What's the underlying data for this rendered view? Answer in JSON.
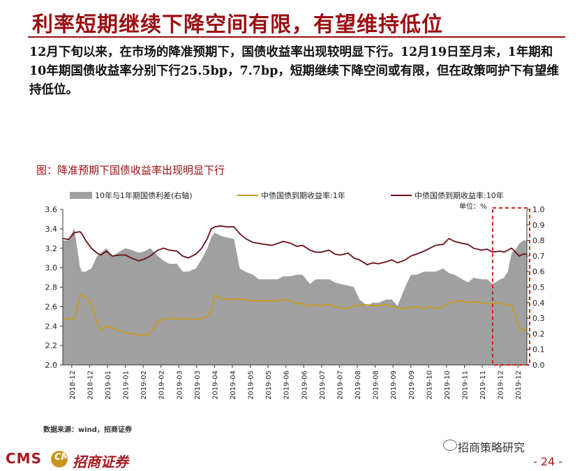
{
  "slide": {
    "title": "利率短期继续下降空间有限，有望维持低位",
    "intro": "12月下旬以来，在市场的降准预期下，国债收益率出现较明显下行。12月19日至月末，1年期和10年期国债收益率分别下行25.5bp，7.7bp，短期继续下降空间或有限，但在政策呵护下有望维持低位。"
  },
  "chart_label": "图：降准预期下国债收益率出现明显下行",
  "source": "数据来源：wind，招商证券",
  "footer": {
    "brand": "CMS",
    "mark": "CM",
    "name": "招商证券",
    "wechat": "招商策略研究",
    "page": "- 24 -"
  },
  "colors": {
    "spread": "#a0a0a0",
    "y1": "#c79a1c",
    "y10": "#6b0d12",
    "accent": "#9b0d12",
    "highlight": "#d42020"
  },
  "chart_data": {
    "type": "line",
    "x_tick_labels": [
      "2018-12",
      "2018-12",
      "2019-01",
      "2019-01",
      "2019-02",
      "2019-02",
      "2019-03",
      "2019-03",
      "2019-04",
      "2019-04",
      "2019-05",
      "2019-05",
      "2019-06",
      "2019-06",
      "2019-07",
      "2019-07",
      "2019-08",
      "2019-08",
      "2019-09",
      "2019-09",
      "2019-10",
      "2019-10",
      "2019-11",
      "2019-11",
      "2019-12",
      "2019-12"
    ],
    "legend": [
      "10年与1年期国债利差(右轴)",
      "中债国债到期收益率:1年",
      "中债国债到期收益率:10年"
    ],
    "unit_label": "单位：%",
    "ylim_left": [
      2.0,
      3.6
    ],
    "ylim_right": [
      0.0,
      1.0
    ],
    "yticks_left": [
      "2.0",
      "2.2",
      "2.4",
      "2.6",
      "2.8",
      "3.0",
      "3.2",
      "3.4",
      "3.6"
    ],
    "yticks_right": [
      "0.0",
      "0.1",
      "0.2",
      "0.3",
      "0.4",
      "0.5",
      "0.6",
      "0.7",
      "0.8",
      "0.9",
      "1.0"
    ],
    "x_count": 24.4,
    "series": [
      {
        "name": "中债国债到期收益率:10年",
        "axis": "left",
        "x": [
          0,
          0.3,
          0.6,
          0.9,
          1.0,
          1.2,
          1.5,
          1.8,
          2.0,
          2.3,
          2.6,
          3.0,
          3.3,
          3.6,
          4.0,
          4.3,
          4.6,
          5.0,
          5.3,
          5.6,
          6.0,
          6.3,
          6.6,
          7.0,
          7.3,
          7.6,
          7.8,
          8.0,
          8.3,
          8.6,
          9.0,
          9.3,
          9.6,
          10.0,
          10.3,
          10.6,
          11.0,
          11.3,
          11.6,
          12.0,
          12.3,
          12.6,
          13.0,
          13.3,
          13.6,
          14.0,
          14.3,
          14.6,
          15.0,
          15.3,
          15.6,
          16.0,
          16.3,
          16.6,
          17.0,
          17.3,
          17.6,
          18.0,
          18.3,
          18.6,
          19.0,
          19.3,
          19.6,
          20.0,
          20.3,
          20.6,
          21.0,
          21.3,
          21.6,
          22.0,
          22.3,
          22.6,
          23.0,
          23.2,
          23.4,
          23.6,
          23.8,
          24.0,
          24.2,
          24.4
        ],
        "values": [
          3.3,
          3.29,
          3.36,
          3.37,
          3.35,
          3.28,
          3.2,
          3.15,
          3.13,
          3.17,
          3.12,
          3.13,
          3.13,
          3.1,
          3.07,
          3.09,
          3.12,
          3.18,
          3.2,
          3.18,
          3.17,
          3.12,
          3.1,
          3.14,
          3.2,
          3.3,
          3.4,
          3.42,
          3.43,
          3.42,
          3.42,
          3.35,
          3.3,
          3.26,
          3.25,
          3.24,
          3.23,
          3.25,
          3.27,
          3.25,
          3.22,
          3.23,
          3.18,
          3.16,
          3.16,
          3.18,
          3.14,
          3.13,
          3.15,
          3.1,
          3.08,
          3.03,
          3.05,
          3.04,
          3.06,
          3.08,
          3.05,
          3.08,
          3.12,
          3.14,
          3.17,
          3.2,
          3.23,
          3.24,
          3.3,
          3.27,
          3.25,
          3.24,
          3.2,
          3.18,
          3.19,
          3.16,
          3.17,
          3.16,
          3.18,
          3.2,
          3.16,
          3.12,
          3.14,
          3.14
        ]
      },
      {
        "name": "中债国债到期收益率:1年",
        "axis": "left",
        "x": [
          0,
          0.3,
          0.6,
          0.9,
          1.0,
          1.2,
          1.5,
          1.8,
          2.0,
          2.3,
          2.6,
          3.0,
          3.3,
          3.6,
          4.0,
          4.3,
          4.6,
          5.0,
          5.3,
          5.6,
          6.0,
          6.3,
          6.6,
          7.0,
          7.3,
          7.6,
          7.8,
          8.0,
          8.3,
          8.6,
          9.0,
          9.3,
          9.6,
          10.0,
          10.3,
          10.6,
          11.0,
          11.3,
          11.6,
          12.0,
          12.3,
          12.6,
          13.0,
          13.3,
          13.6,
          14.0,
          14.3,
          14.6,
          15.0,
          15.3,
          15.6,
          16.0,
          16.3,
          16.6,
          17.0,
          17.3,
          17.6,
          18.0,
          18.3,
          18.6,
          19.0,
          19.3,
          19.6,
          20.0,
          20.3,
          20.6,
          21.0,
          21.3,
          21.6,
          22.0,
          22.3,
          22.6,
          23.0,
          23.2,
          23.4,
          23.6,
          23.8,
          24.0,
          24.2,
          24.4
        ],
        "values": [
          2.46,
          2.48,
          2.47,
          2.7,
          2.72,
          2.7,
          2.62,
          2.44,
          2.36,
          2.4,
          2.38,
          2.35,
          2.33,
          2.32,
          2.31,
          2.31,
          2.32,
          2.45,
          2.47,
          2.48,
          2.47,
          2.48,
          2.47,
          2.47,
          2.48,
          2.5,
          2.55,
          2.72,
          2.68,
          2.68,
          2.67,
          2.68,
          2.67,
          2.66,
          2.66,
          2.66,
          2.66,
          2.66,
          2.67,
          2.66,
          2.63,
          2.63,
          2.6,
          2.62,
          2.61,
          2.62,
          2.6,
          2.59,
          2.58,
          2.61,
          2.61,
          2.62,
          2.61,
          2.61,
          2.62,
          2.6,
          2.59,
          2.58,
          2.59,
          2.6,
          2.58,
          2.6,
          2.58,
          2.6,
          2.64,
          2.65,
          2.66,
          2.64,
          2.65,
          2.64,
          2.63,
          2.63,
          2.64,
          2.62,
          2.62,
          2.61,
          2.5,
          2.38,
          2.36,
          2.36
        ]
      },
      {
        "name": "10年与1年期国债利差(右轴)",
        "axis": "right",
        "x": [
          0,
          0.3,
          0.6,
          0.9,
          1.0,
          1.2,
          1.5,
          1.8,
          2.0,
          2.3,
          2.6,
          3.0,
          3.3,
          3.6,
          4.0,
          4.3,
          4.6,
          5.0,
          5.3,
          5.6,
          6.0,
          6.3,
          6.6,
          7.0,
          7.3,
          7.6,
          7.8,
          8.0,
          8.3,
          8.6,
          9.0,
          9.3,
          9.6,
          10.0,
          10.3,
          10.6,
          11.0,
          11.3,
          11.6,
          12.0,
          12.3,
          12.6,
          13.0,
          13.3,
          13.6,
          14.0,
          14.3,
          14.6,
          15.0,
          15.3,
          15.6,
          16.0,
          16.3,
          16.6,
          17.0,
          17.3,
          17.6,
          18.0,
          18.3,
          18.6,
          19.0,
          19.3,
          19.6,
          20.0,
          20.3,
          20.6,
          21.0,
          21.3,
          21.6,
          22.0,
          22.3,
          22.6,
          23.0,
          23.2,
          23.4,
          23.6,
          23.8,
          24.0,
          24.2,
          24.4
        ],
        "values": [
          0.8,
          0.8,
          0.88,
          0.63,
          0.6,
          0.6,
          0.62,
          0.7,
          0.72,
          0.75,
          0.7,
          0.73,
          0.75,
          0.74,
          0.72,
          0.73,
          0.75,
          0.7,
          0.67,
          0.65,
          0.65,
          0.6,
          0.6,
          0.62,
          0.68,
          0.75,
          0.82,
          0.85,
          0.83,
          0.82,
          0.81,
          0.62,
          0.6,
          0.58,
          0.55,
          0.55,
          0.55,
          0.55,
          0.57,
          0.57,
          0.58,
          0.58,
          0.52,
          0.55,
          0.55,
          0.55,
          0.53,
          0.52,
          0.51,
          0.5,
          0.42,
          0.38,
          0.4,
          0.4,
          0.42,
          0.42,
          0.38,
          0.5,
          0.58,
          0.58,
          0.6,
          0.6,
          0.6,
          0.62,
          0.59,
          0.58,
          0.55,
          0.53,
          0.56,
          0.55,
          0.55,
          0.52,
          0.55,
          0.56,
          0.6,
          0.72,
          0.74,
          0.78,
          0.8,
          0.8
        ]
      }
    ],
    "highlight_range": [
      22.6,
      24.4
    ]
  }
}
